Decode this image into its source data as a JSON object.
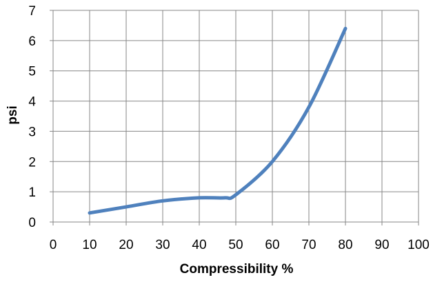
{
  "chart_data": {
    "type": "line",
    "title": "",
    "xlabel": "Compressibility %",
    "ylabel": "psi",
    "xlim": [
      0,
      100
    ],
    "ylim": [
      0,
      7
    ],
    "xticks": [
      "0",
      "10",
      "20",
      "30",
      "40",
      "50",
      "60",
      "70",
      "80",
      "90",
      "100"
    ],
    "yticks": [
      "0",
      "1",
      "2",
      "3",
      "4",
      "5",
      "6",
      "7"
    ],
    "grid": true,
    "legend": "none",
    "series": [
      {
        "color": "#4F81BD",
        "x": [
          10,
          20,
          30,
          40,
          47,
          50,
          60,
          70,
          80
        ],
        "y": [
          0.3,
          0.5,
          0.7,
          0.8,
          0.8,
          0.9,
          2.0,
          3.8,
          6.4
        ]
      }
    ]
  }
}
